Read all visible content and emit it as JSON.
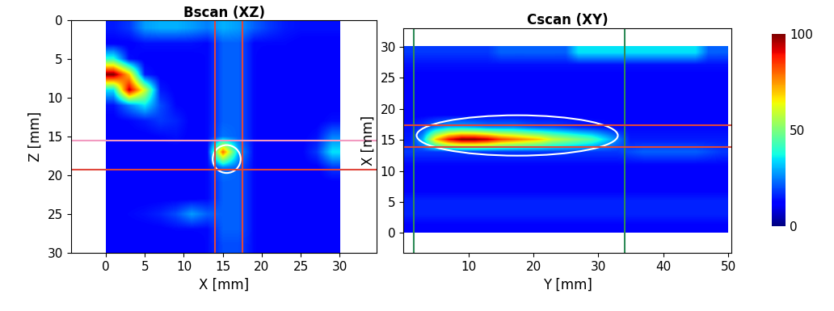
{
  "chart_data": [
    {
      "type": "heatmap",
      "title": "Bscan (XZ)",
      "x_label": "X [mm]",
      "y_label": "Z [mm]",
      "xlim": [
        -4.5,
        34.8
      ],
      "ylim": [
        30,
        0
      ],
      "xticks": [
        0,
        5,
        10,
        15,
        20,
        25,
        30
      ],
      "yticks": [
        0,
        5,
        10,
        15,
        20,
        25,
        30
      ],
      "color": "jet",
      "cells_x_range": [
        0,
        30
      ],
      "cells_y_range": [
        0,
        30
      ],
      "cells": [
        [
          15,
          18,
          28,
          30,
          30,
          28,
          25,
          30,
          28,
          22,
          18,
          15,
          14,
          14,
          14
        ],
        [
          12,
          12,
          14,
          14,
          14,
          14,
          13,
          22,
          22,
          13,
          13,
          13,
          12,
          12,
          12
        ],
        [
          40,
          14,
          12,
          12,
          12,
          12,
          13,
          22,
          22,
          13,
          12,
          12,
          12,
          12,
          12
        ],
        [
          100,
          70,
          15,
          12,
          12,
          12,
          13,
          22,
          22,
          13,
          12,
          12,
          12,
          12,
          12
        ],
        [
          35,
          95,
          60,
          15,
          12,
          12,
          13,
          22,
          22,
          13,
          12,
          12,
          12,
          12,
          12
        ],
        [
          14,
          25,
          35,
          20,
          13,
          12,
          13,
          22,
          22,
          13,
          12,
          12,
          12,
          12,
          12
        ],
        [
          12,
          13,
          15,
          18,
          16,
          12,
          13,
          22,
          22,
          13,
          12,
          12,
          12,
          12,
          14
        ],
        [
          12,
          12,
          12,
          13,
          14,
          12,
          13,
          24,
          22,
          13,
          12,
          12,
          12,
          14,
          25
        ],
        [
          12,
          12,
          12,
          12,
          12,
          12,
          13,
          80,
          30,
          13,
          12,
          12,
          12,
          18,
          35
        ],
        [
          12,
          12,
          12,
          12,
          12,
          12,
          13,
          25,
          22,
          13,
          12,
          12,
          12,
          12,
          18
        ],
        [
          12,
          12,
          12,
          12,
          12,
          12,
          13,
          22,
          22,
          13,
          12,
          12,
          12,
          12,
          12
        ],
        [
          12,
          12,
          12,
          12,
          12,
          12,
          13,
          22,
          22,
          13,
          12,
          12,
          12,
          12,
          12
        ],
        [
          12,
          13,
          14,
          16,
          20,
          28,
          22,
          22,
          22,
          13,
          12,
          12,
          12,
          12,
          12
        ],
        [
          12,
          12,
          12,
          12,
          13,
          13,
          13,
          22,
          22,
          13,
          12,
          12,
          12,
          12,
          12
        ],
        [
          12,
          12,
          12,
          12,
          12,
          12,
          13,
          20,
          20,
          13,
          12,
          12,
          12,
          12,
          12
        ]
      ],
      "vlines": [
        {
          "value": 14,
          "color": "#e0463c"
        },
        {
          "value": 17.5,
          "color": "#e0463c"
        }
      ],
      "hlines": [
        {
          "value": 15.5,
          "color": "#f29ac0"
        },
        {
          "value": 19.3,
          "color": "#e0463c"
        }
      ],
      "region": {
        "center": [
          15.5,
          17.9
        ],
        "width": 3.6,
        "height": 3.6,
        "color": "#ffffff"
      }
    },
    {
      "type": "heatmap",
      "title": "Cscan (XY)",
      "x_label": "Y [mm]",
      "y_label": "X [mm]",
      "xlim": [
        0,
        50.5
      ],
      "ylim": [
        -3.2,
        33
      ],
      "xticks": [
        10,
        20,
        30,
        40,
        50
      ],
      "yticks": [
        0,
        5,
        10,
        15,
        20,
        25,
        30
      ],
      "color": "jet",
      "cells_x_range": [
        0,
        50
      ],
      "cells_y_range": [
        0,
        30
      ],
      "cells": [
        [
          12,
          12,
          12,
          12,
          12,
          12,
          12,
          12,
          12,
          12,
          12,
          12,
          12,
          12,
          12,
          12,
          12,
          12,
          12,
          12,
          12,
          12,
          12,
          12,
          12
        ],
        [
          16,
          16,
          16,
          16,
          16,
          16,
          16,
          16,
          16,
          16,
          16,
          16,
          16,
          16,
          16,
          16,
          16,
          16,
          16,
          16,
          16,
          16,
          16,
          16,
          16
        ],
        [
          16,
          16,
          16,
          16,
          16,
          16,
          16,
          16,
          16,
          16,
          16,
          16,
          16,
          16,
          16,
          16,
          16,
          16,
          16,
          16,
          16,
          16,
          16,
          16,
          16
        ],
        [
          12,
          12,
          12,
          12,
          12,
          12,
          12,
          12,
          12,
          12,
          12,
          12,
          12,
          12,
          12,
          12,
          12,
          12,
          12,
          12,
          12,
          12,
          12,
          12,
          12
        ],
        [
          12,
          12,
          12,
          12,
          12,
          12,
          12,
          12,
          12,
          12,
          12,
          12,
          12,
          12,
          12,
          12,
          12,
          12,
          12,
          12,
          12,
          12,
          12,
          12,
          12
        ],
        [
          13,
          13,
          13,
          13,
          13,
          13,
          13,
          13,
          13,
          13,
          13,
          13,
          13,
          13,
          13,
          13,
          13,
          13,
          13,
          13,
          13,
          13,
          13,
          13,
          13
        ],
        [
          18,
          18,
          18,
          18,
          18,
          18,
          18,
          18,
          18,
          18,
          18,
          18,
          18,
          18,
          18,
          18,
          18,
          20,
          22,
          22,
          22,
          22,
          22,
          20,
          18
        ],
        [
          15,
          30,
          70,
          90,
          100,
          100,
          95,
          85,
          80,
          75,
          70,
          60,
          55,
          50,
          45,
          35,
          25,
          15,
          15,
          15,
          15,
          15,
          15,
          15,
          15
        ],
        [
          14,
          18,
          25,
          30,
          30,
          28,
          25,
          25,
          25,
          22,
          20,
          20,
          18,
          16,
          15,
          14,
          13,
          13,
          13,
          13,
          13,
          13,
          13,
          13,
          13
        ],
        [
          12,
          12,
          12,
          12,
          12,
          12,
          12,
          12,
          12,
          12,
          12,
          12,
          12,
          12,
          12,
          12,
          12,
          12,
          12,
          12,
          12,
          12,
          12,
          12,
          12
        ],
        [
          12,
          12,
          12,
          12,
          12,
          12,
          12,
          12,
          12,
          12,
          12,
          12,
          12,
          12,
          12,
          12,
          12,
          12,
          12,
          12,
          12,
          12,
          12,
          12,
          12
        ],
        [
          12,
          12,
          12,
          12,
          12,
          12,
          12,
          12,
          12,
          12,
          12,
          12,
          12,
          12,
          12,
          12,
          12,
          12,
          12,
          12,
          12,
          12,
          12,
          12,
          12
        ],
        [
          12,
          12,
          12,
          12,
          12,
          12,
          12,
          12,
          12,
          12,
          12,
          12,
          12,
          12,
          12,
          12,
          12,
          12,
          12,
          12,
          12,
          12,
          12,
          12,
          12
        ],
        [
          14,
          14,
          14,
          14,
          14,
          14,
          14,
          14,
          14,
          14,
          14,
          14,
          14,
          14,
          14,
          14,
          14,
          14,
          14,
          14,
          14,
          14,
          14,
          14,
          14
        ],
        [
          18,
          18,
          18,
          18,
          18,
          18,
          18,
          22,
          22,
          22,
          22,
          22,
          22,
          35,
          35,
          35,
          35,
          35,
          35,
          35,
          35,
          35,
          35,
          22,
          22
        ]
      ],
      "vlines": [
        {
          "value": 1.5,
          "color": "#2e8b57"
        },
        {
          "value": 34,
          "color": "#2e8b57"
        }
      ],
      "hlines": [
        {
          "value": 17.4,
          "color": "#e0463c"
        },
        {
          "value": 13.8,
          "color": "#e0463c"
        }
      ],
      "region": {
        "center": [
          17.5,
          15.7
        ],
        "width": 31,
        "height": 6.5,
        "color": "#ffffff"
      }
    }
  ],
  "colorbar": {
    "range": [
      0,
      100
    ],
    "ticks": [
      0,
      50,
      100
    ]
  }
}
